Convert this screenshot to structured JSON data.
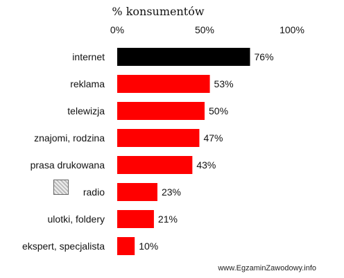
{
  "chart_data": {
    "type": "bar",
    "orientation": "horizontal",
    "xlabel": "% konsumentów",
    "xlim": [
      0,
      100
    ],
    "ticks": [
      {
        "value": 0,
        "label": "0%"
      },
      {
        "value": 50,
        "label": "50%"
      },
      {
        "value": 100,
        "label": "100%"
      }
    ],
    "categories": [
      "internet",
      "reklama",
      "telewizja",
      "znajomi, rodzina",
      "prasa drukowana",
      "radio",
      "ulotki, foldery",
      "ekspert, specjalista"
    ],
    "values": [
      76,
      53,
      50,
      47,
      43,
      23,
      21,
      10
    ],
    "value_labels": [
      "76%",
      "53%",
      "50%",
      "47%",
      "43%",
      "23%",
      "21%",
      "10%"
    ],
    "colors": [
      "#000000",
      "#ff0000",
      "#ff0000",
      "#ff0000",
      "#ff0000",
      "#ff0000",
      "#ff0000",
      "#ff0000"
    ],
    "grid": false
  },
  "footer": {
    "text": "www.EgzaminZawodowy.info"
  },
  "stamp_icon": "image-placeholder-icon"
}
